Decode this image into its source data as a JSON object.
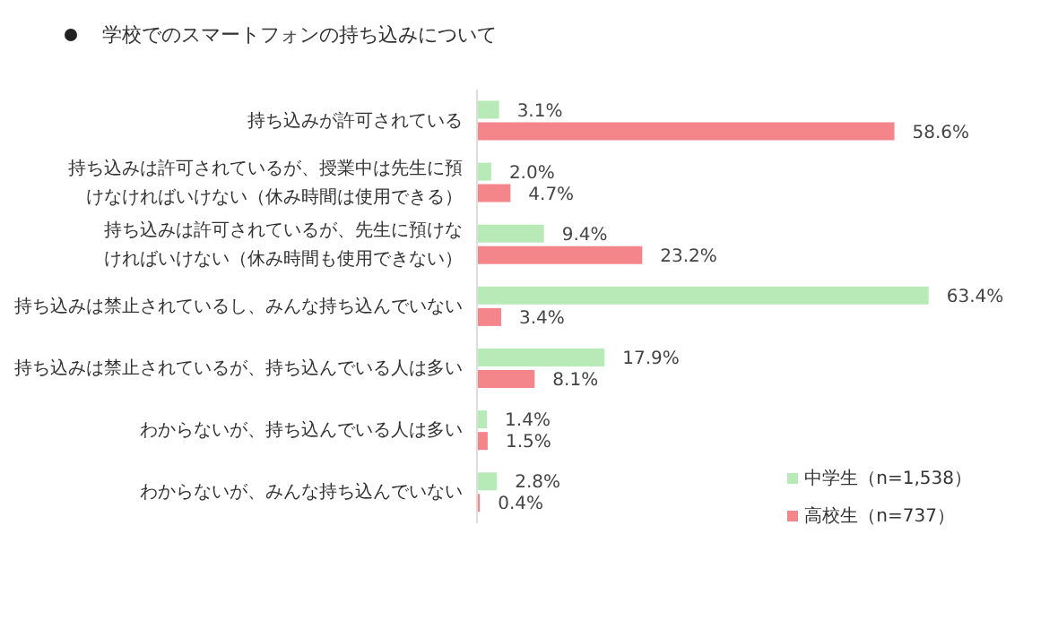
{
  "chart_data": {
    "type": "bar",
    "orientation": "horizontal",
    "title": "学校でのスマートフォンの持ち込みについて",
    "categories": [
      "持ち込みが許可されている",
      "持ち込みは許可されているが、授業中は先生に預けなければいけない（休み時間は使用できる）",
      "持ち込みは許可されているが、先生に預けなければいけない（休み時間も使用できない）",
      "持ち込みは禁止されているし、みんな持ち込んでいない",
      "持ち込みは禁止されているが、持ち込んでいる人は多い",
      "わからないが、持ち込んでいる人は多い",
      "わからないが、みんな持ち込んでいない"
    ],
    "series": [
      {
        "name": "中学生（n=1,538）",
        "color": "#b8eab8",
        "values": [
          3.1,
          2.0,
          9.4,
          63.4,
          17.9,
          1.4,
          2.8
        ],
        "value_labels": [
          "3.1%",
          "2.0%",
          "9.4%",
          "63.4%",
          "17.9%",
          "1.4%",
          "2.8%"
        ]
      },
      {
        "name": "高校生（n=737）",
        "color": "#f4868b",
        "values": [
          58.6,
          4.7,
          23.2,
          3.4,
          8.1,
          1.5,
          0.4
        ],
        "value_labels": [
          "58.6%",
          "4.7%",
          "23.2%",
          "3.4%",
          "8.1%",
          "1.5%",
          "0.4%"
        ]
      }
    ],
    "legend": "bottom right"
  }
}
